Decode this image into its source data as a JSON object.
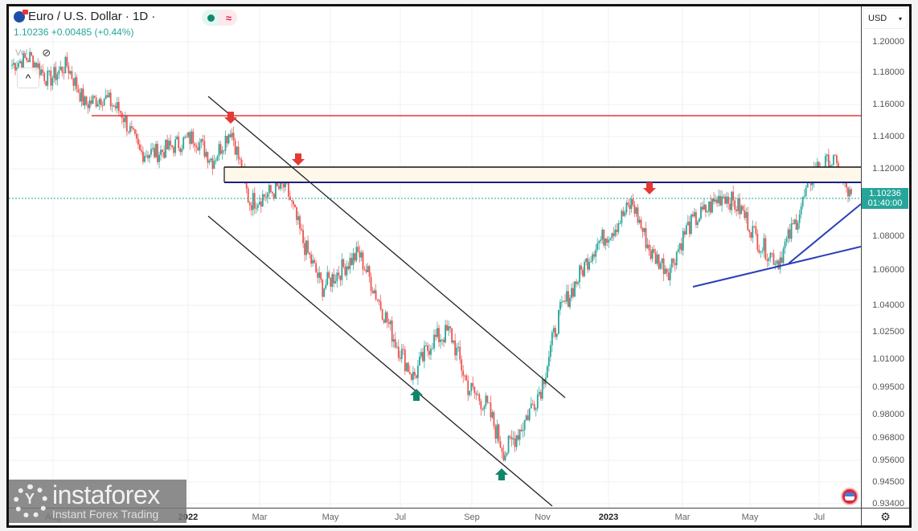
{
  "header": {
    "symbol_title": "Euro / U.S. Dollar · 1D ·",
    "last_price": "1.10236",
    "change": "+0.00485",
    "change_pct": "(+0.44%)",
    "vol_label": "Vol",
    "collapse_icon": "^",
    "eye_icon": "eye-off"
  },
  "scale": {
    "currency": "USD",
    "currency_chevron": "▾",
    "current_price_tag": "1.10236",
    "countdown": "01:40:00",
    "settings_icon": "⚙"
  },
  "watermark": {
    "brand": "instaforex",
    "tagline": "Instant Forex Trading"
  },
  "colors": {
    "up": "#26a69a",
    "down": "#ef5350",
    "resistance_red": "#e53935",
    "zone_black": "#111111",
    "zone_navy": "#1a237e",
    "trendline_blue": "#2a3fb8",
    "channel": "#222222",
    "price_tag_bg": "#26a69a"
  },
  "chart_data": {
    "type": "candlestick",
    "title": "Euro / U.S. Dollar · 1D",
    "xlabel": "",
    "ylabel": "USD",
    "ylim": [
      0.934,
      1.205
    ],
    "grid": true,
    "y_ticks": [
      "1.20000",
      "1.18000",
      "1.16000",
      "1.14000",
      "1.12000",
      "1.08000",
      "1.06000",
      "1.04000",
      "1.02500",
      "1.01000",
      "0.99500",
      "0.98000",
      "0.96800",
      "0.95600",
      "0.94500",
      "0.93400"
    ],
    "x_ticks": [
      {
        "label": "Aug",
        "bold": false
      },
      {
        "label": "2022",
        "bold": true
      },
      {
        "label": "Mar",
        "bold": false
      },
      {
        "label": "May",
        "bold": false
      },
      {
        "label": "Jul",
        "bold": false
      },
      {
        "label": "Sep",
        "bold": false
      },
      {
        "label": "Nov",
        "bold": false
      },
      {
        "label": "2023",
        "bold": true
      },
      {
        "label": "Mar",
        "bold": false
      },
      {
        "label": "May",
        "bold": false
      },
      {
        "label": "Jul",
        "bold": false
      }
    ],
    "price_path": [
      [
        "2021-08",
        1.185
      ],
      [
        "2021-08-mid",
        1.19
      ],
      [
        "2021-09",
        1.175
      ],
      [
        "2021-09-mid",
        1.185
      ],
      [
        "2021-10",
        1.16
      ],
      [
        "2021-10-mid",
        1.165
      ],
      [
        "2021-11",
        1.155
      ],
      [
        "2021-11-mid",
        1.13
      ],
      [
        "2021-12",
        1.13
      ],
      [
        "2022-01",
        1.135
      ],
      [
        "2022-01-mid",
        1.14
      ],
      [
        "2022-02",
        1.125
      ],
      [
        "2022-02-mid",
        1.145
      ],
      [
        "2022-03",
        1.1
      ],
      [
        "2022-03-mid",
        1.105
      ],
      [
        "2022-04",
        1.11
      ],
      [
        "2022-04-mid",
        1.075
      ],
      [
        "2022-05",
        1.05
      ],
      [
        "2022-05-mid",
        1.06
      ],
      [
        "2022-06",
        1.07
      ],
      [
        "2022-06-mid",
        1.045
      ],
      [
        "2022-07",
        1.02
      ],
      [
        "2022-07-mid",
        1.0
      ],
      [
        "2022-08",
        1.02
      ],
      [
        "2022-08-mid",
        1.025
      ],
      [
        "2022-09",
        0.995
      ],
      [
        "2022-09-mid",
        0.985
      ],
      [
        "2022-10",
        0.96
      ],
      [
        "2022-10-mid",
        0.975
      ],
      [
        "2022-11",
        0.995
      ],
      [
        "2022-11-mid",
        1.035
      ],
      [
        "2022-12",
        1.055
      ],
      [
        "2023-01",
        1.075
      ],
      [
        "2023-01-mid",
        1.085
      ],
      [
        "2023-02",
        1.1
      ],
      [
        "2023-02-mid",
        1.07
      ],
      [
        "2023-03",
        1.06
      ],
      [
        "2023-03-mid",
        1.085
      ],
      [
        "2023-04",
        1.095
      ],
      [
        "2023-04-mid",
        1.105
      ],
      [
        "2023-05",
        1.095
      ],
      [
        "2023-05-mid",
        1.075
      ],
      [
        "2023-06",
        1.065
      ],
      [
        "2023-06-mid",
        1.09
      ],
      [
        "2023-07",
        1.12
      ],
      [
        "2023-07-mid",
        1.125
      ],
      [
        "2023-08",
        1.102
      ]
    ],
    "annotations": [
      {
        "type": "hline",
        "name": "resistance",
        "price": 1.153,
        "color": "#e53935"
      },
      {
        "type": "zone",
        "name": "supply-zone",
        "top": 1.121,
        "bottom": 1.113
      },
      {
        "type": "hline",
        "name": "last-price",
        "price": 1.10236,
        "style": "dotted"
      },
      {
        "type": "channel",
        "name": "descending-channel"
      },
      {
        "type": "trendline",
        "name": "ascending-support-1"
      },
      {
        "type": "trendline",
        "name": "ascending-support-2"
      },
      {
        "type": "arrow-down",
        "count": 3,
        "color": "#e53935"
      },
      {
        "type": "arrow-up",
        "count": 2,
        "color": "#12866a"
      }
    ]
  }
}
